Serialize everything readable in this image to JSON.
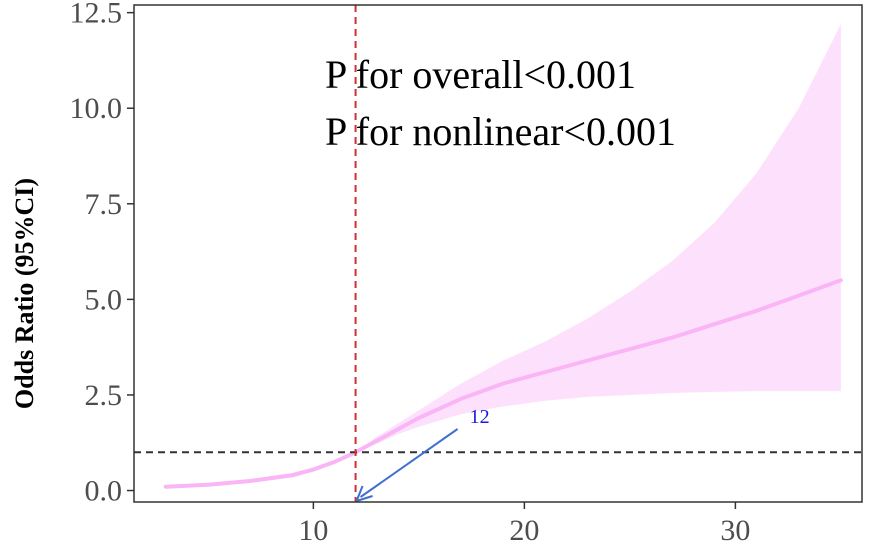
{
  "chart_data": {
    "type": "line",
    "xlabel": "",
    "ylabel": "Odds Ratio (95%CI)",
    "xlim": [
      1.5,
      36.0
    ],
    "ylim": [
      -0.3,
      12.7
    ],
    "xticks": [
      10,
      20,
      30
    ],
    "xtick_labels": [
      "10",
      "20",
      "30"
    ],
    "yticks": [
      0.0,
      2.5,
      5.0,
      7.5,
      10.0,
      12.5
    ],
    "ytick_labels": [
      "0.0",
      "2.5",
      "5.0",
      "7.5",
      "10.0",
      "12.5"
    ],
    "grid": false,
    "annotations": [
      "P for overall<0.001",
      "P for nonlinear<0.001"
    ],
    "reference_lines": {
      "horizontal_y": 1.0,
      "vertical_x": 12
    },
    "point_label": {
      "text": "12",
      "x": 12,
      "y": 1.0
    },
    "series": [
      {
        "x": [
          3,
          5,
          7,
          9,
          10,
          11,
          12,
          13,
          14,
          15,
          17,
          19,
          21,
          23,
          25,
          27,
          29,
          31,
          33,
          35
        ],
        "y": [
          0.1,
          0.15,
          0.25,
          0.4,
          0.55,
          0.75,
          1.0,
          1.3,
          1.6,
          1.9,
          2.4,
          2.8,
          3.1,
          3.4,
          3.7,
          4.0,
          4.35,
          4.7,
          5.1,
          5.5
        ],
        "lower": [
          0.07,
          0.11,
          0.2,
          0.34,
          0.49,
          0.7,
          1.0,
          1.22,
          1.47,
          1.67,
          2.0,
          2.2,
          2.35,
          2.45,
          2.5,
          2.55,
          2.58,
          2.6,
          2.6,
          2.6
        ],
        "upper": [
          0.13,
          0.19,
          0.3,
          0.46,
          0.6,
          0.8,
          1.0,
          1.4,
          1.75,
          2.1,
          2.8,
          3.4,
          3.9,
          4.5,
          5.2,
          6.0,
          7.0,
          8.3,
          10.0,
          12.2
        ]
      }
    ],
    "colors": {
      "line": "#f9b5f5",
      "band": "#fde1fc",
      "vline": "#d0302f",
      "hline": "#333333",
      "arrow": "#3f6fd0",
      "label": "#1a1ae0"
    }
  }
}
